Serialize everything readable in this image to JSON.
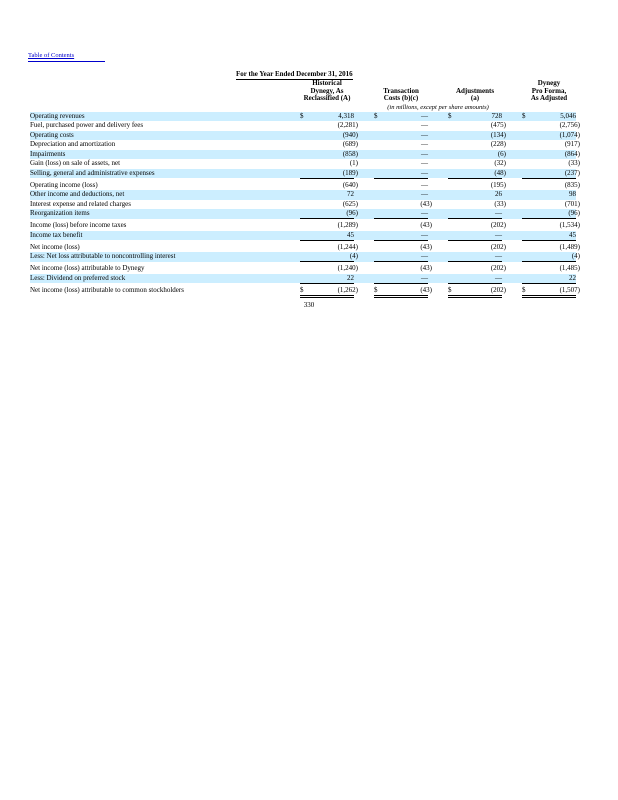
{
  "page": {
    "toc_link_label": "Table of Contents",
    "page_number": "330"
  },
  "table": {
    "period_header": "For the Year Ended December 31, 2016",
    "units_note": "(in millions, except per share amounts)",
    "column_headers": [
      "Historical\nDynegy, As\nReclassified (A)",
      "Transaction\nCosts (b)(c)",
      "Adjustments\n(a)",
      "Dynegy\nPro Forma,\nAs Adjusted"
    ],
    "rows": [
      {
        "label": "Operating revenues",
        "dollar": true,
        "values": [
          "4,318",
          "—",
          "728",
          "5,046"
        ],
        "shaded": true
      },
      {
        "label": "Fuel, purchased power and delivery fees",
        "values": [
          "(2,281)",
          "—",
          "(475)",
          "(2,756)"
        ]
      },
      {
        "label": "Operating costs",
        "values": [
          "(940)",
          "—",
          "(134)",
          "(1,074)"
        ],
        "shaded": true
      },
      {
        "label": "Depreciation and amortization",
        "values": [
          "(689)",
          "—",
          "(228)",
          "(917)"
        ]
      },
      {
        "label": "Impairments",
        "values": [
          "(858)",
          "—",
          "(6)",
          "(864)"
        ],
        "shaded": true
      },
      {
        "label": "Gain (loss) on sale of assets, net",
        "values": [
          "(1)",
          "—",
          "(32)",
          "(33)"
        ]
      },
      {
        "label": "Selling, general and administrative expenses",
        "values": [
          "(189)",
          "—",
          "(48)",
          "(237)"
        ],
        "shaded": true,
        "rule": true
      },
      {
        "label": "Operating income (loss)",
        "values": [
          "(640)",
          "—",
          "(195)",
          "(835)"
        ],
        "spacer": true
      },
      {
        "label": "Other income and deductions, net",
        "values": [
          "72",
          "—",
          "26",
          "98"
        ],
        "shaded": true
      },
      {
        "label": "Interest expense and related charges",
        "values": [
          "(625)",
          "(43)",
          "(33)",
          "(701)"
        ]
      },
      {
        "label": "Reorganization items",
        "values": [
          "(96)",
          "—",
          "—",
          "(96)"
        ],
        "shaded": true,
        "rule": true
      },
      {
        "label": "Income (loss) before income taxes",
        "values": [
          "(1,289)",
          "(43)",
          "(202)",
          "(1,534)"
        ],
        "spacer": true
      },
      {
        "label": "Income tax benefit",
        "values": [
          "45",
          "—",
          "—",
          "45"
        ],
        "shaded": true,
        "rule": true
      },
      {
        "label": "Net income (loss)",
        "values": [
          "(1,244)",
          "(43)",
          "(202)",
          "(1,489)"
        ],
        "spacer": true
      },
      {
        "label": "Less: Net loss attributable to noncontrolling interest",
        "values": [
          "(4)",
          "—",
          "—",
          "(4)"
        ],
        "shaded": true,
        "rule": true
      },
      {
        "label": "Net income (loss) attributable to Dynegy",
        "values": [
          "(1,240)",
          "(43)",
          "(202)",
          "(1,485)"
        ],
        "spacer": true
      },
      {
        "label": "Less: Dividend on preferred stock",
        "values": [
          "22",
          "—",
          "—",
          "22"
        ],
        "shaded": true,
        "rule": true
      },
      {
        "label": "Net income (loss) attributable to common stockholders",
        "dollar": true,
        "values": [
          "(1,262)",
          "(43)",
          "(202)",
          "(1,507)"
        ],
        "double_rule": true,
        "spacer": true
      }
    ]
  }
}
